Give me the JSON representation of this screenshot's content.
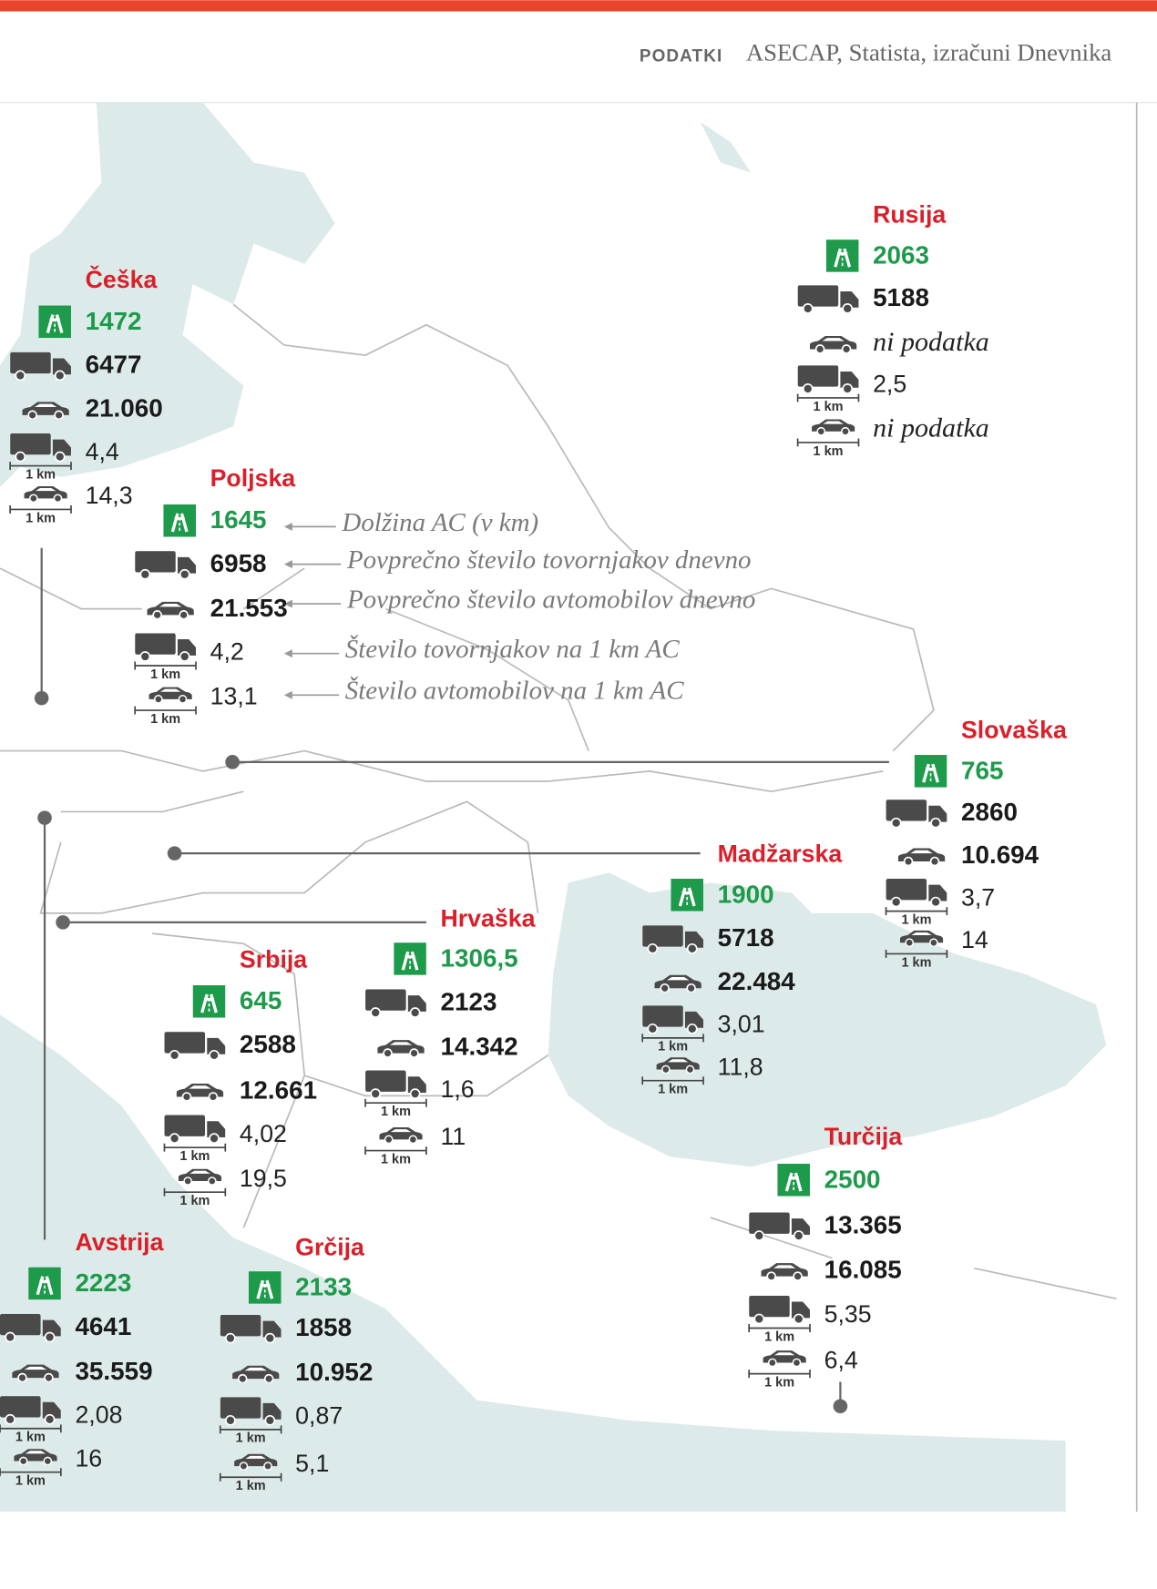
{
  "header": {
    "label": "PODATKI",
    "source": "ASECAP, Statista, izračuni Dnevnika"
  },
  "legend": [
    "Dolžina AC (v km)",
    "Povprečno število tovornjakov dnevno",
    "Povprečno število avtomobilov dnevno",
    "Število tovornjakov na 1 km AC",
    "Število avtomobilov na 1 km AC"
  ],
  "km_label": "1 km",
  "countries": [
    {
      "name": "Češka",
      "values": [
        "1472",
        "6477",
        "21.060",
        "4,4",
        "14,3"
      ]
    },
    {
      "name": "Poljska",
      "values": [
        "1645",
        "6958",
        "21.553",
        "4,2",
        "13,1"
      ]
    },
    {
      "name": "Rusija",
      "values": [
        "2063",
        "5188",
        "ni podatka",
        "2,5",
        "ni podatka"
      ]
    },
    {
      "name": "Slovaška",
      "values": [
        "765",
        "2860",
        "10.694",
        "3,7",
        "14"
      ]
    },
    {
      "name": "Madžarska",
      "values": [
        "1900",
        "5718",
        "22.484",
        "3,01",
        "11,8"
      ]
    },
    {
      "name": "Hrvaška",
      "values": [
        "1306,5",
        "2123",
        "14.342",
        "1,6",
        "11"
      ]
    },
    {
      "name": "Srbija",
      "values": [
        "645",
        "2588",
        "12.661",
        "4,02",
        "19,5"
      ]
    },
    {
      "name": "Turčija",
      "values": [
        "2500",
        "13.365",
        "16.085",
        "5,35",
        "6,4"
      ]
    },
    {
      "name": "Avstrija",
      "values": [
        "2223",
        "4641",
        "35.559",
        "2,08",
        "16"
      ]
    },
    {
      "name": "Grčija",
      "values": [
        "2133",
        "1858",
        "10.952",
        "0,87",
        "5,1"
      ]
    }
  ]
}
